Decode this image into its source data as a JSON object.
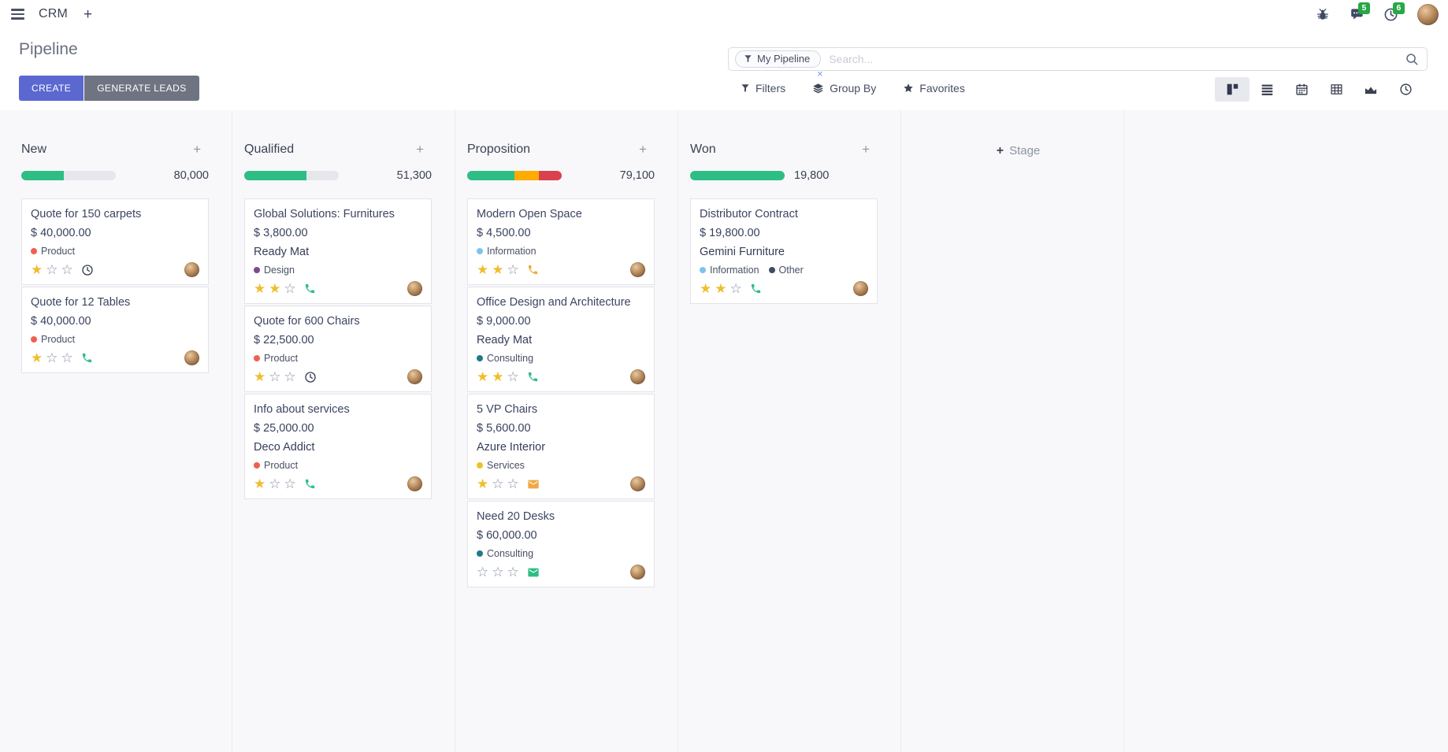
{
  "topbar": {
    "app_name": "CRM",
    "message_count": "5",
    "activity_count": "6"
  },
  "control_panel": {
    "title": "Pipeline",
    "create_label": "CREATE",
    "generate_leads_label": "GENERATE LEADS",
    "search": {
      "facet_label": "My Pipeline",
      "remove_facet": "×",
      "placeholder": "Search..."
    },
    "filters_label": "Filters",
    "group_by_label": "Group By",
    "favorites_label": "Favorites",
    "view_switcher": [
      "kanban",
      "list",
      "calendar",
      "pivot",
      "graph",
      "activity"
    ],
    "active_view": "kanban"
  },
  "icon_names": [
    "menu-icon",
    "plus-icon",
    "bug-icon",
    "chat-icon",
    "clock-icon",
    "filter-icon",
    "layers-icon",
    "star-icon",
    "search-icon",
    "kanban-view-icon",
    "list-view-icon",
    "calendar-view-icon",
    "pivot-view-icon",
    "graph-view-icon",
    "activity-view-icon",
    "phone-icon",
    "envelope-icon",
    "clock-activity-icon"
  ],
  "kanban": {
    "quick_add": "+",
    "add_stage": {
      "plus": "+",
      "label": "Stage"
    },
    "columns": [
      {
        "name": "New",
        "counter": "80,000",
        "progress": [
          {
            "width": "45%",
            "color": "#2EBD85"
          }
        ],
        "cards": [
          {
            "title": "Quote for 150 carpets",
            "amount": "$ 40,000.00",
            "tags": [
              {
                "label": "Product",
                "color": "#F06050"
              }
            ],
            "stars": 1,
            "activity_icon": "clock",
            "activity_color": "#343B50"
          },
          {
            "title": "Quote for 12 Tables",
            "amount": "$ 40,000.00",
            "tags": [
              {
                "label": "Product",
                "color": "#F06050"
              }
            ],
            "stars": 1,
            "activity_icon": "phone",
            "activity_color": "#2EBD85"
          }
        ]
      },
      {
        "name": "Qualified",
        "counter": "51,300",
        "progress": [
          {
            "width": "66%",
            "color": "#2EBD85"
          }
        ],
        "cards": [
          {
            "title": "Global Solutions: Furnitures",
            "amount": "$ 3,800.00",
            "partner": "Ready Mat",
            "tags": [
              {
                "label": "Design",
                "color": "#7C4B8F"
              }
            ],
            "stars": 2,
            "activity_icon": "phone",
            "activity_color": "#2EBD85"
          },
          {
            "title": "Quote for 600 Chairs",
            "amount": "$ 22,500.00",
            "tags": [
              {
                "label": "Product",
                "color": "#F06050"
              }
            ],
            "stars": 1,
            "activity_icon": "clock",
            "activity_color": "#343B50"
          },
          {
            "title": "Info about services",
            "amount": "$ 25,000.00",
            "partner": "Deco Addict",
            "tags": [
              {
                "label": "Product",
                "color": "#F06050"
              }
            ],
            "stars": 1,
            "activity_icon": "phone",
            "activity_color": "#2EBD85"
          }
        ]
      },
      {
        "name": "Proposition",
        "counter": "79,100",
        "progress": [
          {
            "width": "50%",
            "color": "#2EBD85"
          },
          {
            "width": "26%",
            "color": "#FFAB00"
          },
          {
            "width": "24%",
            "color": "#D9414E"
          }
        ],
        "cards": [
          {
            "title": "Modern Open Space",
            "amount": "$ 4,500.00",
            "tags": [
              {
                "label": "Information",
                "color": "#7EC2EF"
              }
            ],
            "stars": 2,
            "activity_icon": "phone",
            "activity_color": "#EFA941"
          },
          {
            "title": "Office Design and Architecture",
            "amount": "$ 9,000.00",
            "partner": "Ready Mat",
            "tags": [
              {
                "label": "Consulting",
                "color": "#1F7A8C"
              }
            ],
            "stars": 2,
            "activity_icon": "phone",
            "activity_color": "#2EBD85"
          },
          {
            "title": "5 VP Chairs",
            "amount": "$ 5,600.00",
            "partner": "Azure Interior",
            "tags": [
              {
                "label": "Services",
                "color": "#EFC228"
              }
            ],
            "stars": 1,
            "activity_icon": "envelope",
            "activity_color": "#EFA941"
          },
          {
            "title": "Need 20 Desks",
            "amount": "$ 60,000.00",
            "tags": [
              {
                "label": "Consulting",
                "color": "#1F7A8C"
              }
            ],
            "stars": 0,
            "activity_icon": "envelope",
            "activity_color": "#2EBD85"
          }
        ]
      },
      {
        "name": "Won",
        "counter": "19,800",
        "progress": [
          {
            "width": "100%",
            "color": "#2EBD85"
          }
        ],
        "cards": [
          {
            "title": "Distributor Contract",
            "amount": "$ 19,800.00",
            "partner": "Gemini Furniture",
            "tags": [
              {
                "label": "Information",
                "color": "#7EC2EF"
              },
              {
                "label": "Other",
                "color": "#3F4C66"
              }
            ],
            "stars": 2,
            "activity_icon": "phone",
            "activity_color": "#2EBD85"
          }
        ]
      }
    ]
  }
}
